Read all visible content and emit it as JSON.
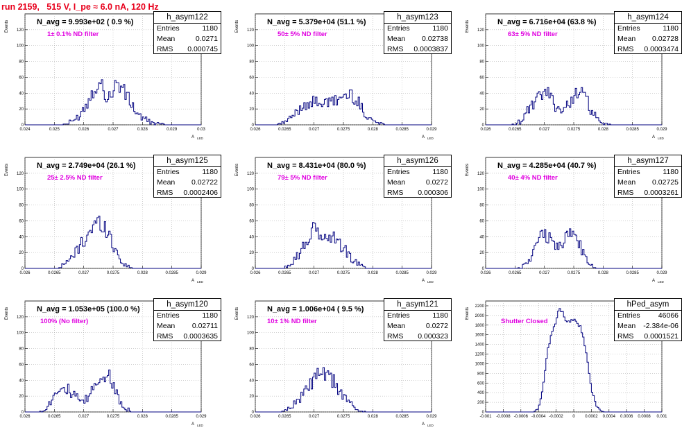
{
  "page_title": "run 2159,   515 V, I_pe ≈ 6.0 nA, 120 Hz",
  "stats_labels": {
    "entries": "Entries",
    "mean": "Mean",
    "rms": "RMS"
  },
  "colors": {
    "title": "#e8001c",
    "histogram": "#00007f",
    "filter_text": "#e000e0",
    "grid": "#a0a0a0"
  },
  "chart_data": [
    {
      "type": "bar",
      "name": "h_asym122",
      "annotation": "N_avg = 9.993e+02 ( 0.9 %)",
      "filter_label": "1± 0.1% ND filter",
      "stats": {
        "entries": "1180",
        "mean": "0.0271",
        "rms": "0.000745"
      },
      "xlabel": "A",
      "xlabel_sub": "LED",
      "ylabel": "Events",
      "xlim": [
        0.024,
        0.03
      ],
      "ylim": [
        0,
        140
      ],
      "xticks": [
        "0.024",
        "0.025",
        "0.026",
        "0.027",
        "0.028",
        "0.029",
        "0.03"
      ],
      "xtick_values": [
        0.024,
        0.025,
        0.026,
        0.027,
        0.028,
        0.029,
        0.03
      ],
      "yticks": [
        "0",
        "20",
        "40",
        "60",
        "80",
        "100",
        "120"
      ],
      "ytick_values": [
        0,
        20,
        40,
        60,
        80,
        100,
        120
      ],
      "grid": true,
      "profile": [
        [
          0.02515,
          0
        ],
        [
          0.0254,
          1
        ],
        [
          0.0256,
          4
        ],
        [
          0.0258,
          10
        ],
        [
          0.026,
          20
        ],
        [
          0.0262,
          34
        ],
        [
          0.0264,
          50
        ],
        [
          0.02655,
          52
        ],
        [
          0.0267,
          45
        ],
        [
          0.0268,
          32
        ],
        [
          0.0269,
          38
        ],
        [
          0.0271,
          50
        ],
        [
          0.0272,
          52
        ],
        [
          0.0274,
          40
        ],
        [
          0.0276,
          28
        ],
        [
          0.0278,
          16
        ],
        [
          0.028,
          8
        ],
        [
          0.0283,
          3
        ],
        [
          0.0286,
          1
        ],
        [
          0.02875,
          0
        ]
      ]
    },
    {
      "type": "bar",
      "name": "h_asym123",
      "annotation": "N_avg = 5.379e+04 (51.1 %)",
      "filter_label": "50± 5% ND filter",
      "stats": {
        "entries": "1180",
        "mean": "0.02738",
        "rms": "0.0003837"
      },
      "xlabel": "A",
      "xlabel_sub": "LED",
      "ylabel": "Events",
      "xlim": [
        0.026,
        0.029
      ],
      "ylim": [
        0,
        140
      ],
      "xticks": [
        "0.026",
        "0.0265",
        "0.027",
        "0.0275",
        "0.028",
        "0.0285",
        "0.029"
      ],
      "xtick_values": [
        0.026,
        0.0265,
        0.027,
        0.0275,
        0.028,
        0.0285,
        0.029
      ],
      "yticks": [
        "0",
        "20",
        "40",
        "60",
        "80",
        "100",
        "120"
      ],
      "ytick_values": [
        0,
        20,
        40,
        60,
        80,
        100,
        120
      ],
      "grid": true,
      "profile": [
        [
          0.02635,
          0
        ],
        [
          0.0265,
          3
        ],
        [
          0.0266,
          8
        ],
        [
          0.0267,
          16
        ],
        [
          0.0268,
          24
        ],
        [
          0.0269,
          28
        ],
        [
          0.027,
          28
        ],
        [
          0.0271,
          30
        ],
        [
          0.0272,
          26
        ],
        [
          0.0273,
          28
        ],
        [
          0.0274,
          32
        ],
        [
          0.0275,
          36
        ],
        [
          0.0276,
          38
        ],
        [
          0.0277,
          34
        ],
        [
          0.0278,
          22
        ],
        [
          0.0279,
          12
        ],
        [
          0.028,
          6
        ],
        [
          0.0281,
          2
        ],
        [
          0.02825,
          0
        ]
      ]
    },
    {
      "type": "bar",
      "name": "h_asym124",
      "annotation": "N_avg = 6.716e+04 (63.8 %)",
      "filter_label": "63± 5% ND filter",
      "stats": {
        "entries": "1180",
        "mean": "0.02728",
        "rms": "0.0003474"
      },
      "xlabel": "A",
      "xlabel_sub": "LED",
      "ylabel": "Events",
      "xlim": [
        0.026,
        0.029
      ],
      "ylim": [
        0,
        140
      ],
      "xticks": [
        "0.026",
        "0.0265",
        "0.027",
        "0.0275",
        "0.028",
        "0.0285",
        "0.029"
      ],
      "xtick_values": [
        0.026,
        0.0265,
        0.027,
        0.0275,
        0.028,
        0.0285,
        0.029
      ],
      "yticks": [
        "0",
        "20",
        "40",
        "60",
        "80",
        "100",
        "120"
      ],
      "ytick_values": [
        0,
        20,
        40,
        60,
        80,
        100,
        120
      ],
      "grid": true,
      "profile": [
        [
          0.02645,
          0
        ],
        [
          0.0266,
          4
        ],
        [
          0.0267,
          16
        ],
        [
          0.02685,
          28
        ],
        [
          0.027,
          42
        ],
        [
          0.0271,
          36
        ],
        [
          0.0272,
          24
        ],
        [
          0.0273,
          18
        ],
        [
          0.0274,
          24
        ],
        [
          0.0275,
          38
        ],
        [
          0.0276,
          42
        ],
        [
          0.0277,
          34
        ],
        [
          0.0278,
          18
        ],
        [
          0.0279,
          6
        ],
        [
          0.028,
          1
        ],
        [
          0.02815,
          0
        ]
      ]
    },
    {
      "type": "bar",
      "name": "h_asym125",
      "annotation": "N_avg = 2.749e+04 (26.1 %)",
      "filter_label": "25± 2.5% ND filter",
      "stats": {
        "entries": "1180",
        "mean": "0.02722",
        "rms": "0.0002406"
      },
      "xlabel": "A",
      "xlabel_sub": "LED",
      "ylabel": "Events",
      "xlim": [
        0.026,
        0.029
      ],
      "ylim": [
        0,
        140
      ],
      "xticks": [
        "0.026",
        "0.0265",
        "0.027",
        "0.0275",
        "0.028",
        "0.0285",
        "0.029"
      ],
      "xtick_values": [
        0.026,
        0.0265,
        0.027,
        0.0275,
        0.028,
        0.0285,
        0.029
      ],
      "yticks": [
        "0",
        "20",
        "40",
        "60",
        "80",
        "100",
        "120"
      ],
      "ytick_values": [
        0,
        20,
        40,
        60,
        80,
        100,
        120
      ],
      "grid": true,
      "profile": [
        [
          0.02655,
          0
        ],
        [
          0.0267,
          6
        ],
        [
          0.0268,
          14
        ],
        [
          0.02695,
          30
        ],
        [
          0.0271,
          46
        ],
        [
          0.0272,
          56
        ],
        [
          0.0273,
          58
        ],
        [
          0.0274,
          48
        ],
        [
          0.0275,
          30
        ],
        [
          0.0276,
          14
        ],
        [
          0.0277,
          4
        ],
        [
          0.02785,
          0
        ]
      ]
    },
    {
      "type": "bar",
      "name": "h_asym126",
      "annotation": "N_avg = 8.431e+04 (80.0 %)",
      "filter_label": "79± 5% ND filter",
      "stats": {
        "entries": "1180",
        "mean": "0.0272",
        "rms": "0.000306"
      },
      "xlabel": "A",
      "xlabel_sub": "LED",
      "ylabel": "Events",
      "xlim": [
        0.026,
        0.029
      ],
      "ylim": [
        0,
        140
      ],
      "xticks": [
        "0.026",
        "0.0265",
        "0.027",
        "0.0275",
        "0.028",
        "0.0285",
        "0.029"
      ],
      "xtick_values": [
        0.026,
        0.0265,
        0.027,
        0.0275,
        0.028,
        0.0285,
        0.029
      ],
      "yticks": [
        "0",
        "20",
        "40",
        "60",
        "80",
        "100",
        "120"
      ],
      "ytick_values": [
        0,
        20,
        40,
        60,
        80,
        100,
        120
      ],
      "grid": true,
      "profile": [
        [
          0.02645,
          0
        ],
        [
          0.0266,
          6
        ],
        [
          0.0268,
          24
        ],
        [
          0.0269,
          38
        ],
        [
          0.027,
          48
        ],
        [
          0.0271,
          44
        ],
        [
          0.0272,
          36
        ],
        [
          0.0273,
          42
        ],
        [
          0.0274,
          34
        ],
        [
          0.0275,
          26
        ],
        [
          0.0276,
          16
        ],
        [
          0.0277,
          8
        ],
        [
          0.0278,
          3
        ],
        [
          0.02795,
          0
        ]
      ]
    },
    {
      "type": "bar",
      "name": "h_asym127",
      "annotation": "N_avg = 4.285e+04 (40.7 %)",
      "filter_label": "40± 4% ND filter",
      "stats": {
        "entries": "1180",
        "mean": "0.02725",
        "rms": "0.0003261"
      },
      "xlabel": "A",
      "xlabel_sub": "LED",
      "ylabel": "Events",
      "xlim": [
        0.026,
        0.029
      ],
      "ylim": [
        0,
        140
      ],
      "xticks": [
        "0.026",
        "0.0265",
        "0.027",
        "0.0275",
        "0.028",
        "0.0285",
        "0.029"
      ],
      "xtick_values": [
        0.026,
        0.0265,
        0.027,
        0.0275,
        0.028,
        0.0285,
        0.029
      ],
      "yticks": [
        "0",
        "20",
        "40",
        "60",
        "80",
        "100",
        "120"
      ],
      "ytick_values": [
        0,
        20,
        40,
        60,
        80,
        100,
        120
      ],
      "grid": true,
      "profile": [
        [
          0.02655,
          0
        ],
        [
          0.0267,
          6
        ],
        [
          0.0268,
          20
        ],
        [
          0.0269,
          34
        ],
        [
          0.027,
          44
        ],
        [
          0.0271,
          38
        ],
        [
          0.0272,
          26
        ],
        [
          0.0273,
          34
        ],
        [
          0.0274,
          40
        ],
        [
          0.0275,
          46
        ],
        [
          0.0276,
          30
        ],
        [
          0.0277,
          12
        ],
        [
          0.0278,
          3
        ],
        [
          0.02795,
          0
        ]
      ]
    },
    {
      "type": "bar",
      "name": "h_asym120",
      "annotation": "N_avg = 1.053e+05 (100.0 %)",
      "filter_label": "100% (No filter)",
      "stats": {
        "entries": "1180",
        "mean": "0.02711",
        "rms": "0.0003635"
      },
      "xlabel": "A",
      "xlabel_sub": "LED",
      "ylabel": "Events",
      "xlim": [
        0.026,
        0.029
      ],
      "ylim": [
        0,
        140
      ],
      "xticks": [
        "0.026",
        "0.0265",
        "0.027",
        "0.0275",
        "0.028",
        "0.0285",
        "0.029"
      ],
      "xtick_values": [
        0.026,
        0.0265,
        0.027,
        0.0275,
        0.028,
        0.0285,
        0.029
      ],
      "yticks": [
        "0",
        "20",
        "40",
        "60",
        "80",
        "100",
        "120"
      ],
      "ytick_values": [
        0,
        20,
        40,
        60,
        80,
        100,
        120
      ],
      "grid": true,
      "profile": [
        [
          0.02625,
          0
        ],
        [
          0.0264,
          8
        ],
        [
          0.0265,
          24
        ],
        [
          0.0266,
          34
        ],
        [
          0.0267,
          30
        ],
        [
          0.0268,
          22
        ],
        [
          0.0269,
          16
        ],
        [
          0.027,
          12
        ],
        [
          0.0271,
          20
        ],
        [
          0.0272,
          36
        ],
        [
          0.0273,
          46
        ],
        [
          0.0274,
          48
        ],
        [
          0.0275,
          34
        ],
        [
          0.0276,
          18
        ],
        [
          0.0277,
          6
        ],
        [
          0.0278,
          1
        ],
        [
          0.0279,
          0
        ]
      ]
    },
    {
      "type": "bar",
      "name": "h_asym121",
      "annotation": "N_avg = 1.006e+04 ( 9.5 %)",
      "filter_label": "10± 1% ND filter",
      "stats": {
        "entries": "1180",
        "mean": "0.0272",
        "rms": "0.000323"
      },
      "xlabel": "A",
      "xlabel_sub": "LED",
      "ylabel": "Events",
      "xlim": [
        0.026,
        0.029
      ],
      "ylim": [
        0,
        140
      ],
      "xticks": [
        "0.026",
        "0.0265",
        "0.027",
        "0.0275",
        "0.028",
        "0.0285",
        "0.029"
      ],
      "xtick_values": [
        0.026,
        0.0265,
        0.027,
        0.0275,
        0.028,
        0.0285,
        0.029
      ],
      "yticks": [
        "0",
        "20",
        "40",
        "60",
        "80",
        "100",
        "120"
      ],
      "ytick_values": [
        0,
        20,
        40,
        60,
        80,
        100,
        120
      ],
      "grid": true,
      "profile": [
        [
          0.02645,
          0
        ],
        [
          0.0266,
          6
        ],
        [
          0.0268,
          20
        ],
        [
          0.0269,
          30
        ],
        [
          0.027,
          42
        ],
        [
          0.0271,
          48
        ],
        [
          0.0272,
          44
        ],
        [
          0.0273,
          42
        ],
        [
          0.0274,
          30
        ],
        [
          0.0275,
          20
        ],
        [
          0.0276,
          12
        ],
        [
          0.0277,
          5
        ],
        [
          0.0278,
          1
        ],
        [
          0.0279,
          0
        ]
      ]
    },
    {
      "type": "bar",
      "name": "hPed_asym",
      "annotation": "",
      "filter_label": "Shutter Closed",
      "stats": {
        "entries": "46066",
        "mean": "-2.384e-06",
        "rms": "0.0001521"
      },
      "xlabel": "",
      "xlabel_sub": "",
      "ylabel": "Events",
      "xlim": [
        -0.001,
        0.001
      ],
      "ylim": [
        0,
        2300
      ],
      "xticks": [
        "-0.001",
        "-0.0008",
        "-0.0006",
        "-0.0004",
        "-0.0002",
        "0",
        "0.0002",
        "0.0004",
        "0.0006",
        "0.0008",
        "0.001"
      ],
      "xtick_values": [
        -0.001,
        -0.0008,
        -0.0006,
        -0.0004,
        -0.0002,
        0,
        0.0002,
        0.0004,
        0.0006,
        0.0008,
        0.001
      ],
      "yticks": [
        "0",
        "200",
        "400",
        "600",
        "800",
        "1000",
        "1200",
        "1400",
        "1600",
        "1800",
        "2000",
        "2200"
      ],
      "ytick_values": [
        0,
        200,
        400,
        600,
        800,
        1000,
        1200,
        1400,
        1600,
        1800,
        2000,
        2200
      ],
      "grid": true,
      "profile": [
        [
          -0.00045,
          0
        ],
        [
          -0.0004,
          80
        ],
        [
          -0.00035,
          500
        ],
        [
          -0.0003,
          1200
        ],
        [
          -0.00025,
          1700
        ],
        [
          -0.0002,
          1900
        ],
        [
          -0.00015,
          2150
        ],
        [
          -0.0001,
          1950
        ],
        [
          -5e-05,
          1850
        ],
        [
          0.0,
          1900
        ],
        [
          5e-05,
          1850
        ],
        [
          0.0001,
          1600
        ],
        [
          0.00015,
          1100
        ],
        [
          0.0002,
          500
        ],
        [
          0.00025,
          150
        ],
        [
          0.0003,
          30
        ],
        [
          0.00035,
          0
        ]
      ]
    }
  ]
}
